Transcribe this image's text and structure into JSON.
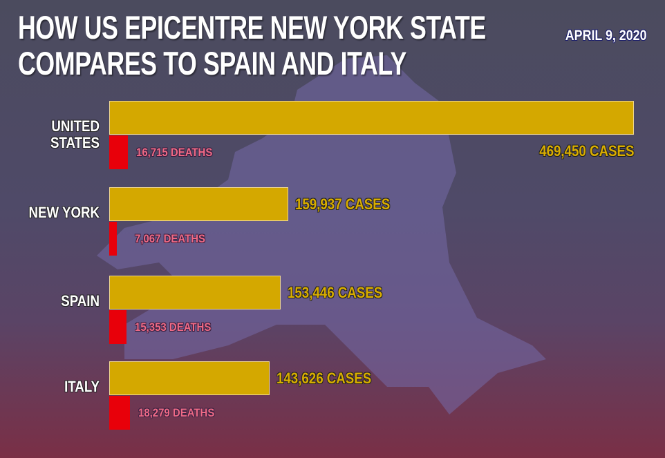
{
  "chart_data": {
    "type": "bar",
    "orientation": "horizontal",
    "title": "HOW US EPICENTRE NEW YORK STATE COMPARES TO SPAIN AND ITALY",
    "subtitle": "APRIL 9, 2020",
    "categories": [
      "UNITED STATES",
      "NEW YORK",
      "SPAIN",
      "ITALY"
    ],
    "xlim": [
      0,
      469450
    ],
    "series": [
      {
        "color": "#d4a800",
        "label_color": "#d9ad00",
        "values": [
          469450,
          159937,
          153446,
          143626
        ],
        "value_labels": [
          "469,450 CASES",
          "159,937 CASES",
          "153,446 CASES",
          "143,626 CASES"
        ]
      },
      {
        "color": "#e8000a",
        "label_color": "#ef6a86",
        "values": [
          16715,
          7067,
          15353,
          18279
        ],
        "value_labels": [
          "16,715 DEATHS",
          "7,067 DEATHS",
          "15,353 DEATHS",
          "18,279 DEATHS"
        ]
      }
    ]
  }
}
